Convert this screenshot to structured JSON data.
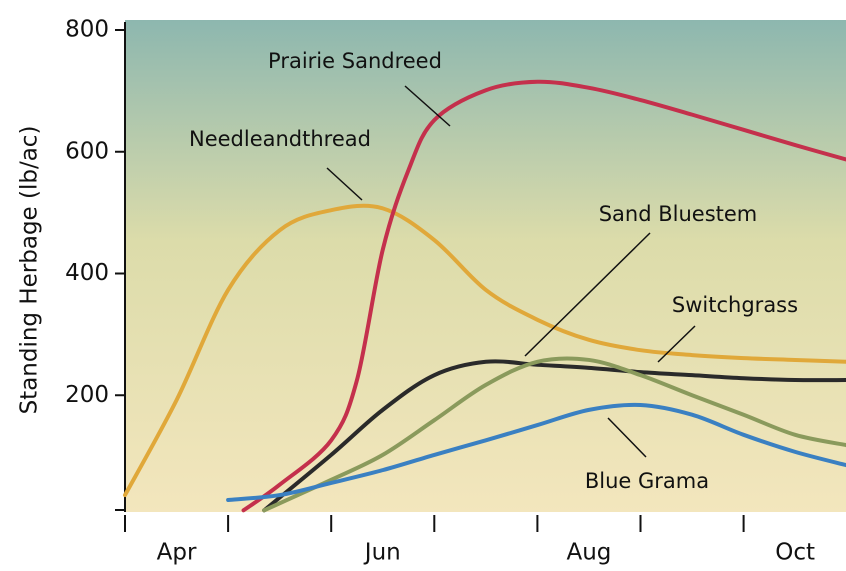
{
  "chart_data": {
    "type": "line",
    "ylabel": "Standing Herbage (lb/ac)",
    "categories": [
      "Apr",
      null,
      "Jun",
      null,
      "Aug",
      null,
      "Oct"
    ],
    "ylim": [
      0,
      800
    ],
    "yticks": [
      200,
      400,
      600,
      800
    ],
    "series": [
      {
        "name": "Needleandthread",
        "color": "#e0a83a",
        "x": [
          0,
          0.5,
          1,
          1.5,
          2,
          2.5,
          3,
          3.5,
          4,
          4.5,
          5,
          5.5,
          6,
          6.5,
          7
        ],
        "values": [
          36,
          192,
          373,
          471,
          504,
          507,
          455,
          373,
          324,
          291,
          274,
          266,
          261,
          258,
          255
        ]
      },
      {
        "name": "Prairie Sandreed",
        "color": "#c4304c",
        "x": [
          1.15,
          1.5,
          2,
          2.25,
          2.5,
          2.75,
          3,
          3.5,
          4,
          4.5,
          5,
          5.5,
          6,
          6.5,
          7
        ],
        "values": [
          11,
          53,
          126,
          225,
          439,
          570,
          652,
          701,
          715,
          705,
          685,
          661,
          636,
          611,
          587
        ]
      },
      {
        "name": "Sand Bluestem",
        "color": "#2a2a2a",
        "x": [
          1.35,
          2,
          2.5,
          3,
          3.5,
          4,
          4.5,
          5,
          5.5,
          6,
          6.5,
          7
        ],
        "values": [
          11,
          102,
          176,
          233,
          255,
          250,
          245,
          238,
          233,
          228,
          225,
          225
        ]
      },
      {
        "name": "Switchgrass",
        "color": "#8a9a5c",
        "x": [
          1.35,
          2,
          2.5,
          3,
          3.5,
          4,
          4.5,
          5,
          5.5,
          6,
          6.5,
          7
        ],
        "values": [
          11,
          61,
          102,
          159,
          217,
          255,
          258,
          233,
          200,
          168,
          135,
          118
        ]
      },
      {
        "name": "Blue Grama",
        "color": "#3a80c2",
        "x": [
          1,
          1.5,
          2,
          2.5,
          3,
          3.5,
          4,
          4.5,
          5,
          5.5,
          6,
          6.5,
          7
        ],
        "values": [
          28,
          36,
          56,
          77,
          102,
          126,
          151,
          176,
          184,
          168,
          135,
          107,
          85
        ]
      }
    ]
  }
}
